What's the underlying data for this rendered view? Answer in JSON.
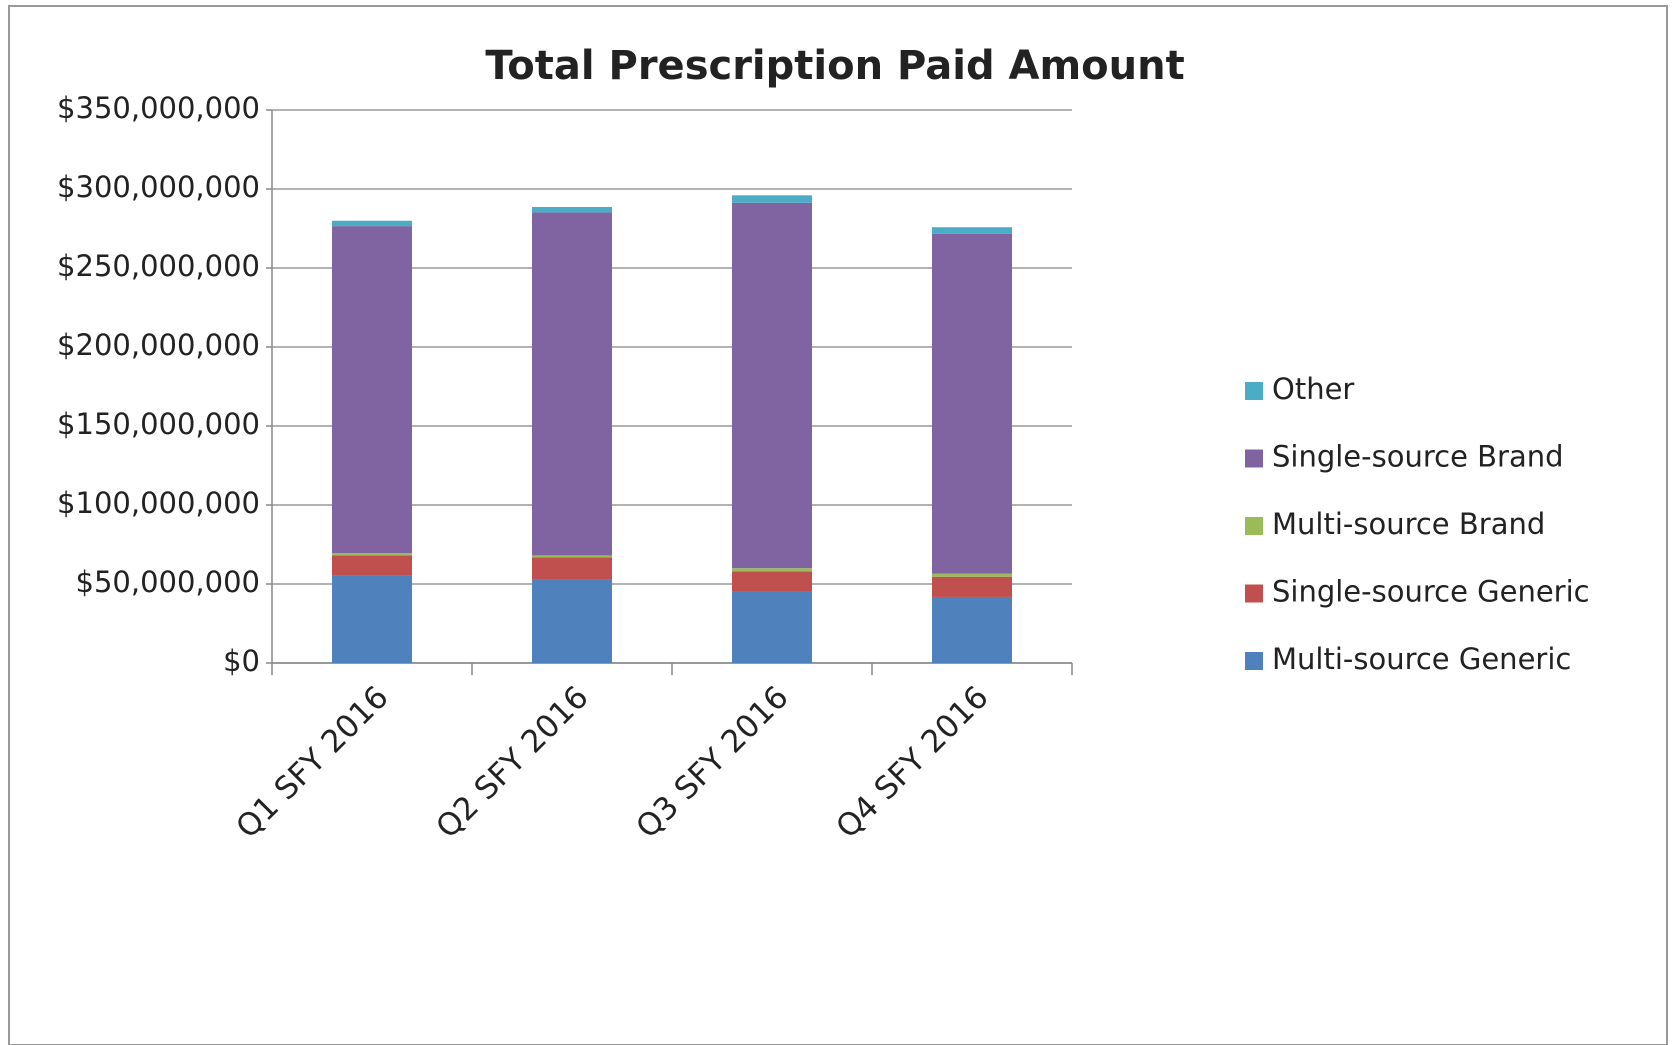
{
  "chart_data": {
    "type": "stacked_bar",
    "title": "Total Prescription Paid Amount",
    "categories": [
      "Q1 SFY 2016",
      "Q2 SFY 2016",
      "Q3 SFY 2016",
      "Q4 SFY 2016"
    ],
    "series": [
      {
        "name": "Multi-source Generic",
        "color": "#4f81bd",
        "values": [
          55300000,
          52600000,
          45200000,
          41800000
        ]
      },
      {
        "name": "Single-source Generic",
        "color": "#c0504d",
        "values": [
          12800000,
          14200000,
          12800000,
          12800000
        ]
      },
      {
        "name": "Multi-source Brand",
        "color": "#9bbb59",
        "values": [
          1400000,
          1300000,
          2000000,
          2000000
        ]
      },
      {
        "name": "Single-source Brand",
        "color": "#8064a2",
        "values": [
          207000000,
          217100000,
          231300000,
          215100000
        ]
      },
      {
        "name": "Other",
        "color": "#4bacc6",
        "values": [
          3400000,
          3400000,
          4700000,
          4100000
        ]
      }
    ],
    "ylim": [
      0,
      350000000
    ],
    "yticks": [
      {
        "value": 0,
        "label": "$0"
      },
      {
        "value": 50000000,
        "label": "$50,000,000"
      },
      {
        "value": 100000000,
        "label": "$100,000,000"
      },
      {
        "value": 150000000,
        "label": "$150,000,000"
      },
      {
        "value": 200000000,
        "label": "$200,000,000"
      },
      {
        "value": 250000000,
        "label": "$250,000,000"
      },
      {
        "value": 300000000,
        "label": "$300,000,000"
      },
      {
        "value": 350000000,
        "label": "$350,000,000"
      }
    ],
    "grid": true,
    "legend": "right"
  }
}
